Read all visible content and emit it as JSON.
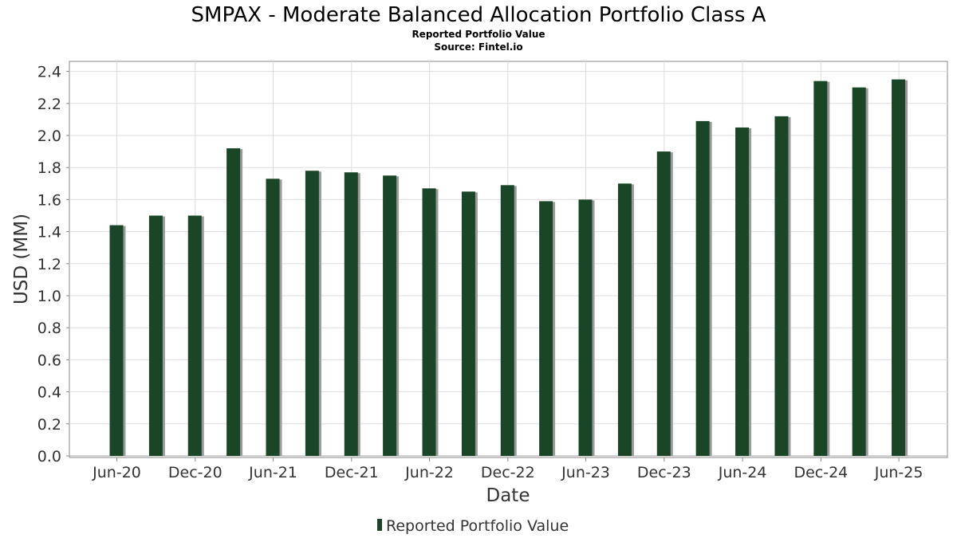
{
  "chart_data": {
    "type": "bar",
    "title": "SMPAX - Moderate Balanced Allocation Portfolio Class A",
    "subtitle": "Reported Portfolio Value",
    "source": "Source: Fintel.io",
    "xlabel": "Date",
    "ylabel": "USD (MM)",
    "ylim": [
      0,
      2.46
    ],
    "yticks": [
      "0.0",
      "0.2",
      "0.4",
      "0.6",
      "0.8",
      "1.0",
      "1.2",
      "1.4",
      "1.6",
      "1.8",
      "2.0",
      "2.2",
      "2.4"
    ],
    "xtick_labels": [
      "Jun-20",
      "Dec-20",
      "Jun-21",
      "Dec-21",
      "Jun-22",
      "Dec-22",
      "Jun-23",
      "Dec-23",
      "Jun-24",
      "Dec-24",
      "Jun-25"
    ],
    "grid": true,
    "legend_position": "bottom",
    "series": [
      {
        "name": "Reported Portfolio Value",
        "color": "#1a4527",
        "x": [
          "2020-05-31",
          "2020-08-31",
          "2020-11-30",
          "2021-02-28",
          "2021-05-31",
          "2021-08-31",
          "2021-11-30",
          "2022-02-28",
          "2022-05-31",
          "2022-08-31",
          "2022-11-30",
          "2023-02-28",
          "2023-05-31",
          "2023-08-31",
          "2023-11-30",
          "2024-02-29",
          "2024-05-31",
          "2024-08-31",
          "2024-11-30",
          "2025-02-28",
          "2025-05-31"
        ],
        "values": [
          1.44,
          1.5,
          1.5,
          1.92,
          1.73,
          1.78,
          1.77,
          1.75,
          1.67,
          1.65,
          1.69,
          1.59,
          1.6,
          1.7,
          1.9,
          2.09,
          2.05,
          2.12,
          2.34,
          2.3,
          2.35
        ]
      }
    ]
  }
}
